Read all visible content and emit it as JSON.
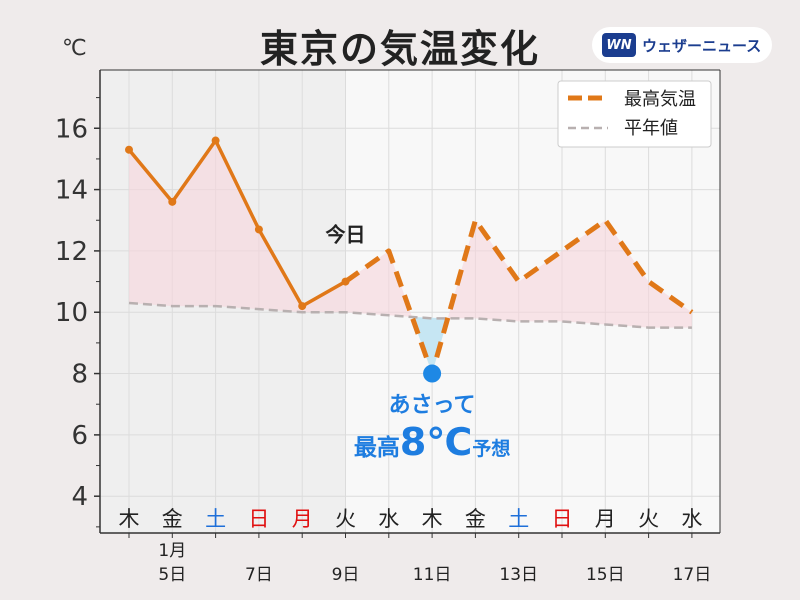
{
  "header": {
    "title": "東京の気温変化",
    "unit": "℃",
    "brand_logo": "WN",
    "brand_name": "ウェザーニュース"
  },
  "chart_data": {
    "type": "line",
    "title": "東京の気温変化",
    "ylabel": "℃",
    "ylim": [
      2.8,
      17.9
    ],
    "yticks": [
      4,
      6,
      8,
      10,
      12,
      14,
      16
    ],
    "x_days": [
      4,
      5,
      6,
      7,
      8,
      9,
      10,
      11,
      12,
      13,
      14,
      15,
      16,
      17
    ],
    "weekdays": [
      "木",
      "金",
      "土",
      "日",
      "月",
      "火",
      "水",
      "木",
      "金",
      "土",
      "日",
      "月",
      "火",
      "水"
    ],
    "weekday_colors": [
      "#222222",
      "#222222",
      "#1e6fd9",
      "#e01010",
      "#e01010",
      "#222222",
      "#222222",
      "#222222",
      "#222222",
      "#1e6fd9",
      "#e01010",
      "#222222",
      "#222222",
      "#222222"
    ],
    "date_ticks": [
      {
        "day": 5,
        "month": "1月",
        "label": "5日"
      },
      {
        "day": 7,
        "label": "7日"
      },
      {
        "day": 9,
        "label": "9日"
      },
      {
        "day": 11,
        "label": "11日"
      },
      {
        "day": 13,
        "label": "13日"
      },
      {
        "day": 15,
        "label": "15日"
      },
      {
        "day": 17,
        "label": "17日"
      }
    ],
    "today_day": 9,
    "legend_position": "top-right",
    "grid": true,
    "series": [
      {
        "name": "最高気温",
        "color": "#e07818",
        "observed": [
          15.3,
          13.6,
          15.6,
          12.7,
          10.2,
          11.0
        ],
        "forecast": [
          11.0,
          12.0,
          8.0,
          13.0,
          11.0,
          12.0,
          13.0,
          11.0,
          10.0
        ]
      },
      {
        "name": "平年値",
        "color": "#b8b0b0",
        "values": [
          10.3,
          10.2,
          10.2,
          10.1,
          10.0,
          10.0,
          9.9,
          9.8,
          9.8,
          9.7,
          9.7,
          9.6,
          9.5,
          9.5
        ]
      }
    ],
    "annotations": {
      "today": "今日",
      "highlight_day": 11,
      "highlight_value": 8,
      "highlight_line1": "あさって",
      "highlight_line2_prefix": "最高",
      "highlight_line2_value": "8℃",
      "highlight_line2_suffix": "予想"
    }
  }
}
